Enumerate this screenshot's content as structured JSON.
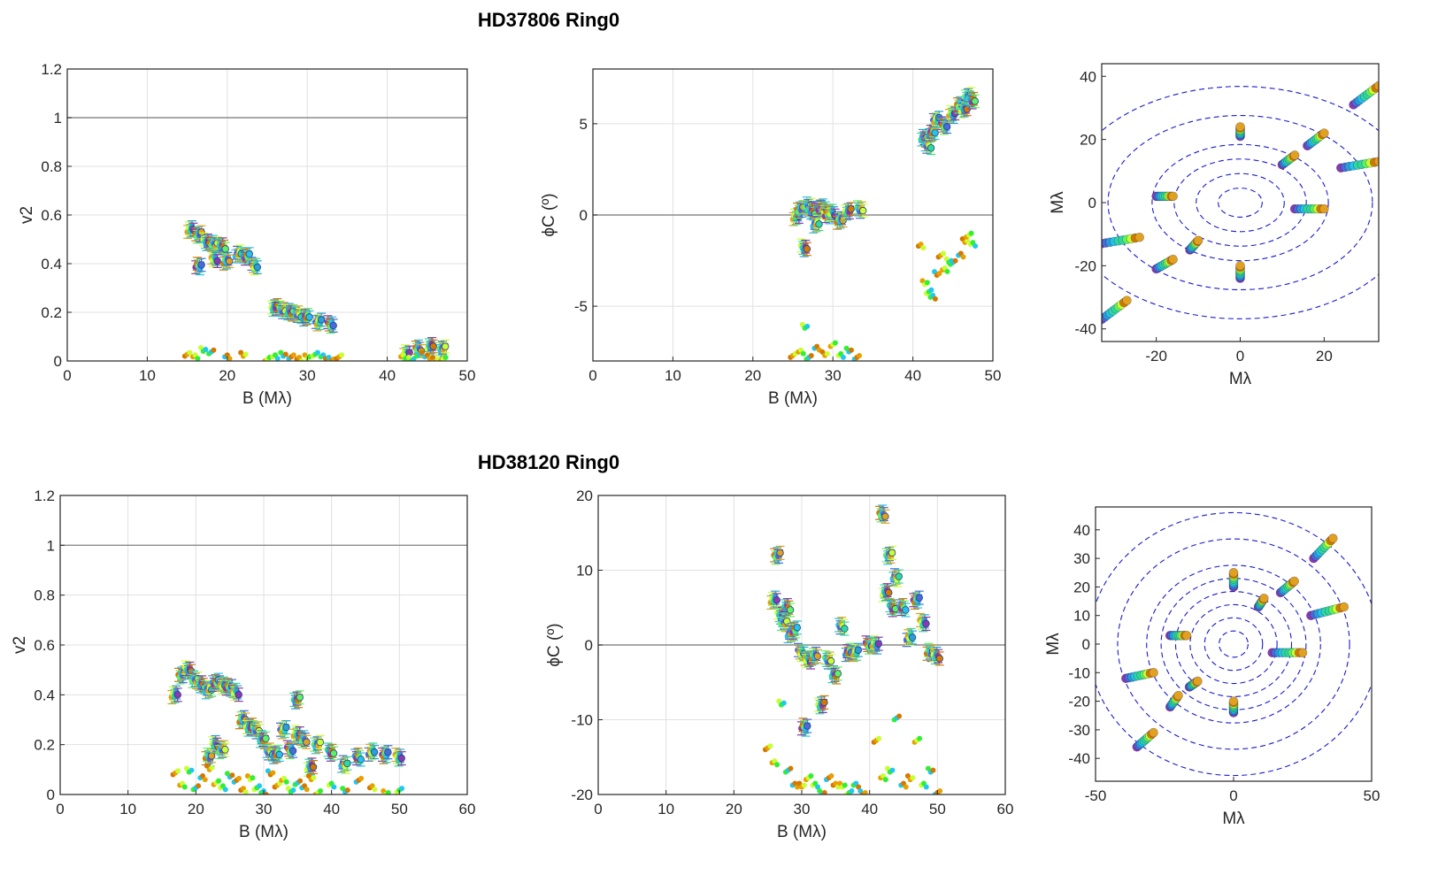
{
  "figure": {
    "titles": [
      "HD37806  Ring0",
      "HD38120  Ring0"
    ]
  },
  "chart_data": [
    {
      "id": "top_v2",
      "type": "scatter",
      "title": "HD37806  Ring0",
      "xlabel": "B (Mλ)",
      "ylabel": "v2",
      "xlim": [
        0,
        50
      ],
      "ylim": [
        0,
        1.2
      ],
      "xticks": [
        0,
        10,
        20,
        30,
        40,
        50
      ],
      "xtick_labels": [
        "0",
        "10",
        "20",
        "30",
        "40",
        "50"
      ],
      "yticks": [
        0,
        0.2,
        0.4,
        0.6,
        0.8,
        1,
        1.2
      ],
      "ytick_labels": [
        "0",
        "0.2",
        "0.4",
        "0.6",
        "0.8",
        "1",
        "1.2"
      ],
      "grid": true,
      "ref_line": 1,
      "series": [
        {
          "name": "data",
          "errorbars": true,
          "x": [
            15.5,
            16.5,
            17.5,
            18.5,
            19.5,
            21.5,
            22.5,
            23.5,
            16.5,
            18.5,
            20.0,
            26.0,
            27.0,
            28.0,
            29.0,
            30.0,
            31.5,
            33.0,
            42.5,
            44.0,
            45.5,
            47.0
          ],
          "y": [
            0.54,
            0.52,
            0.49,
            0.48,
            0.47,
            0.44,
            0.43,
            0.39,
            0.39,
            0.42,
            0.41,
            0.22,
            0.21,
            0.2,
            0.19,
            0.18,
            0.16,
            0.15,
            0.03,
            0.05,
            0.06,
            0.05
          ]
        },
        {
          "name": "model",
          "errorbars": false,
          "x": [
            15,
            16,
            17,
            18,
            20,
            22,
            25,
            26,
            27,
            28,
            29,
            30,
            31,
            32,
            33,
            34,
            42,
            43,
            44,
            45,
            46,
            47
          ],
          "y": [
            0.02,
            0.01,
            0.04,
            0.03,
            0.01,
            0.02,
            0.0,
            0.01,
            0.02,
            0.01,
            0.0,
            0.01,
            0.02,
            0.01,
            0.0,
            0.01,
            0.01,
            0.0,
            0.02,
            0.01,
            0.0,
            0.0
          ]
        }
      ]
    },
    {
      "id": "top_phase",
      "type": "scatter",
      "xlabel": "B (Mλ)",
      "ylabel": "ϕC (º)",
      "xlim": [
        0,
        50
      ],
      "ylim": [
        -8,
        8
      ],
      "xticks": [
        0,
        10,
        20,
        30,
        40,
        50
      ],
      "xtick_labels": [
        "0",
        "10",
        "20",
        "30",
        "40",
        "50"
      ],
      "yticks": [
        -5,
        0,
        5
      ],
      "ytick_labels": [
        "-5",
        "0",
        "5"
      ],
      "grid": true,
      "ref_line": 0,
      "series": [
        {
          "name": "data",
          "errorbars": true,
          "x": [
            25.5,
            26.0,
            26.5,
            27.0,
            27.5,
            28.0,
            28.5,
            29.0,
            29.5,
            30.0,
            31.0,
            32.0,
            33.5,
            41.5,
            42.0,
            42.5,
            43.0,
            44.0,
            45.0,
            46.0,
            46.5,
            47.0,
            47.5
          ],
          "y": [
            -0.1,
            0.3,
            -1.8,
            0.5,
            0.2,
            -0.5,
            0.4,
            0.3,
            0.0,
            0.1,
            -0.3,
            0.2,
            0.3,
            4.2,
            3.8,
            4.5,
            5.2,
            4.9,
            5.5,
            6.0,
            5.8,
            6.5,
            6.3
          ]
        },
        {
          "name": "model",
          "errorbars": false,
          "x": [
            25,
            26,
            26.5,
            27,
            28,
            29,
            30,
            31,
            32,
            33,
            41,
            41.5,
            42,
            42.5,
            43,
            43.5,
            44,
            44.5,
            45,
            46,
            46.5,
            47,
            47.5
          ],
          "y": [
            -7.8,
            -7.6,
            -6.2,
            -7.9,
            -7.4,
            -7.7,
            -7.2,
            -7.8,
            -7.5,
            -7.9,
            -1.8,
            -3.8,
            -4.3,
            -4.6,
            -3.3,
            -2.3,
            -3.1,
            -2.6,
            -2.7,
            -2.3,
            -1.5,
            -1.2,
            -1.7
          ]
        }
      ]
    },
    {
      "id": "top_uv",
      "type": "scatter",
      "xlabel": "Mλ",
      "ylabel": "Mλ",
      "xlim": [
        -33,
        33
      ],
      "ylim": [
        -44,
        44
      ],
      "xticks": [
        -20,
        0,
        20
      ],
      "xtick_labels": [
        "-20",
        "0",
        "20"
      ],
      "yticks": [
        -40,
        -20,
        0,
        20,
        40
      ],
      "ytick_labels": [
        "-40",
        "-20",
        "0",
        "20",
        "40"
      ],
      "rings": [
        5,
        10,
        15,
        20,
        30,
        40
      ],
      "tracks": [
        {
          "u1": 27,
          "v1": 31,
          "u2": 33,
          "v2": 37
        },
        {
          "u1": 16,
          "v1": 18,
          "u2": 20,
          "v2": 22
        },
        {
          "u1": 24,
          "v1": 11,
          "u2": 33,
          "v2": 13
        },
        {
          "u1": 0,
          "v1": 21,
          "u2": 0,
          "v2": 24
        },
        {
          "u1": 10,
          "v1": 12,
          "u2": 13,
          "v2": 15
        },
        {
          "u1": -20,
          "v1": 2,
          "u2": -16,
          "v2": 2
        },
        {
          "u1": 13,
          "v1": -2,
          "u2": 20,
          "v2": -2
        },
        {
          "u1": -12,
          "v1": -15,
          "u2": -10,
          "v2": -12
        },
        {
          "u1": -20,
          "v1": -21,
          "u2": -16,
          "v2": -18
        },
        {
          "u1": 0,
          "v1": -24,
          "u2": 0,
          "v2": -20
        },
        {
          "u1": -33,
          "v1": -13,
          "u2": -24,
          "v2": -11
        },
        {
          "u1": -33,
          "v1": -37,
          "u2": -27,
          "v2": -31
        }
      ]
    },
    {
      "id": "bottom_v2",
      "type": "scatter",
      "title": "HD38120  Ring0",
      "xlabel": "B (Mλ)",
      "ylabel": "v2",
      "xlim": [
        0,
        60
      ],
      "ylim": [
        0,
        1.2
      ],
      "xticks": [
        0,
        10,
        20,
        30,
        40,
        50,
        60
      ],
      "xtick_labels": [
        "0",
        "10",
        "20",
        "30",
        "40",
        "50",
        "60"
      ],
      "yticks": [
        0,
        0.2,
        0.4,
        0.6,
        0.8,
        1,
        1.2
      ],
      "ytick_labels": [
        "0",
        "0.2",
        "0.4",
        "0.6",
        "0.8",
        "1",
        "1.2"
      ],
      "grid": true,
      "ref_line": 1,
      "series": [
        {
          "name": "data",
          "errorbars": true,
          "x": [
            17,
            18,
            19,
            20,
            21,
            22,
            23,
            24,
            25,
            26,
            27,
            28,
            29,
            30,
            31,
            32,
            33,
            34,
            35,
            36,
            37,
            38,
            40,
            42,
            44,
            46,
            48,
            50,
            22,
            23,
            24,
            35
          ],
          "y": [
            0.4,
            0.48,
            0.5,
            0.46,
            0.44,
            0.42,
            0.45,
            0.44,
            0.43,
            0.41,
            0.3,
            0.27,
            0.26,
            0.22,
            0.17,
            0.16,
            0.26,
            0.18,
            0.24,
            0.22,
            0.11,
            0.2,
            0.17,
            0.12,
            0.15,
            0.17,
            0.16,
            0.15,
            0.15,
            0.2,
            0.18,
            0.38
          ]
        },
        {
          "name": "model",
          "errorbars": false,
          "x": [
            17,
            18,
            19,
            20,
            21,
            22,
            23,
            24,
            25,
            26,
            27,
            28,
            29,
            30,
            31,
            32,
            33,
            34,
            35,
            36,
            37,
            38,
            40,
            42,
            44,
            46,
            48,
            50
          ],
          "y": [
            0.08,
            0.03,
            0.09,
            0.02,
            0.06,
            0.1,
            0.04,
            0.02,
            0.07,
            0.05,
            0.01,
            0.06,
            0.02,
            0.0,
            0.08,
            0.03,
            0.05,
            0.01,
            0.04,
            0.02,
            0.06,
            0.0,
            0.03,
            0.01,
            0.05,
            0.02,
            0.0,
            0.01
          ]
        }
      ]
    },
    {
      "id": "bottom_phase",
      "type": "scatter",
      "xlabel": "B (Mλ)",
      "ylabel": "ϕC (º)",
      "xlim": [
        0,
        60
      ],
      "ylim": [
        -20,
        20
      ],
      "xticks": [
        0,
        10,
        20,
        30,
        40,
        50,
        60
      ],
      "xtick_labels": [
        "0",
        "10",
        "20",
        "30",
        "40",
        "50",
        "60"
      ],
      "yticks": [
        -20,
        -10,
        0,
        10,
        20
      ],
      "ytick_labels": [
        "-20",
        "-10",
        "0",
        "10",
        "20"
      ],
      "grid": true,
      "ref_line": 0,
      "series": [
        {
          "name": "data",
          "errorbars": true,
          "x": [
            26,
            26.5,
            27,
            27.5,
            28,
            28.5,
            29,
            30,
            30.5,
            31,
            32,
            33,
            34,
            35,
            36,
            37,
            38,
            40,
            41,
            42,
            42.5,
            43,
            43.5,
            44,
            45,
            46,
            47,
            48,
            49,
            50
          ],
          "y": [
            6,
            12,
            4,
            3,
            5,
            1.5,
            2,
            -1,
            -11,
            -2,
            -1.5,
            -8,
            -2,
            -4,
            2.5,
            -1,
            -1,
            0,
            0,
            17.5,
            7,
            12,
            5,
            9,
            5,
            1,
            6,
            3,
            -1,
            -1.5
          ]
        },
        {
          "name": "model",
          "errorbars": false,
          "x": [
            25,
            26,
            27,
            28,
            29,
            30,
            31,
            32,
            33,
            34,
            35,
            36,
            37,
            38,
            39,
            41,
            42,
            43,
            44,
            45,
            46,
            47,
            48,
            49,
            50
          ],
          "y": [
            -14,
            -16,
            -8,
            -17,
            -19,
            -19,
            -18,
            -19,
            -20,
            -18,
            -19,
            -19,
            -20,
            -19,
            -20,
            -13,
            -18,
            -17,
            -10,
            -19,
            -18,
            -13,
            -19,
            -17,
            -20
          ]
        }
      ]
    },
    {
      "id": "bottom_uv",
      "type": "scatter",
      "xlabel": "Mλ",
      "ylabel": "Mλ",
      "xlim": [
        -50,
        50
      ],
      "ylim": [
        -48,
        48
      ],
      "xticks": [
        -50,
        0,
        50
      ],
      "xtick_labels": [
        "-50",
        "0",
        "50"
      ],
      "yticks": [
        -40,
        -30,
        -20,
        -10,
        0,
        10,
        20,
        30,
        40
      ],
      "ytick_labels": [
        "-40",
        "-30",
        "-20",
        "-10",
        "0",
        "10",
        "20",
        "30",
        "40"
      ],
      "rings": [
        5,
        10,
        15,
        20,
        25,
        30,
        40,
        50
      ],
      "tracks": [
        {
          "u1": 29,
          "v1": 30,
          "u2": 36,
          "v2": 37
        },
        {
          "u1": 17,
          "v1": 18,
          "u2": 22,
          "v2": 22
        },
        {
          "u1": 28,
          "v1": 10,
          "u2": 40,
          "v2": 13
        },
        {
          "u1": 0,
          "v1": 20,
          "u2": 0,
          "v2": 25
        },
        {
          "u1": 9,
          "v1": 13,
          "u2": 11,
          "v2": 16
        },
        {
          "u1": -23,
          "v1": 3,
          "u2": -17,
          "v2": 3
        },
        {
          "u1": 14,
          "v1": -3,
          "u2": 25,
          "v2": -3
        },
        {
          "u1": -16,
          "v1": -15,
          "u2": -13,
          "v2": -13
        },
        {
          "u1": -23,
          "v1": -22,
          "u2": -20,
          "v2": -18
        },
        {
          "u1": 0,
          "v1": -24,
          "u2": 0,
          "v2": -20
        },
        {
          "u1": -39,
          "v1": -12,
          "u2": -29,
          "v2": -10
        },
        {
          "u1": -35,
          "v1": -36,
          "u2": -29,
          "v2": -31
        }
      ]
    }
  ],
  "colors": {
    "spectral": [
      "#e0a020",
      "#d47800",
      "#c8ff30",
      "#60f060",
      "#30d8a0",
      "#28c0e8",
      "#2a9ed8",
      "#4a6ad8",
      "#8a3ab0"
    ],
    "model_pts": [
      "#d47800",
      "#e8a000",
      "#c8ff30",
      "#30f030",
      "#20c8f0"
    ],
    "ring": "#1a1acc",
    "grid": "#e0e0e0",
    "axis": "#262626",
    "refline": "#8c8c8c"
  }
}
